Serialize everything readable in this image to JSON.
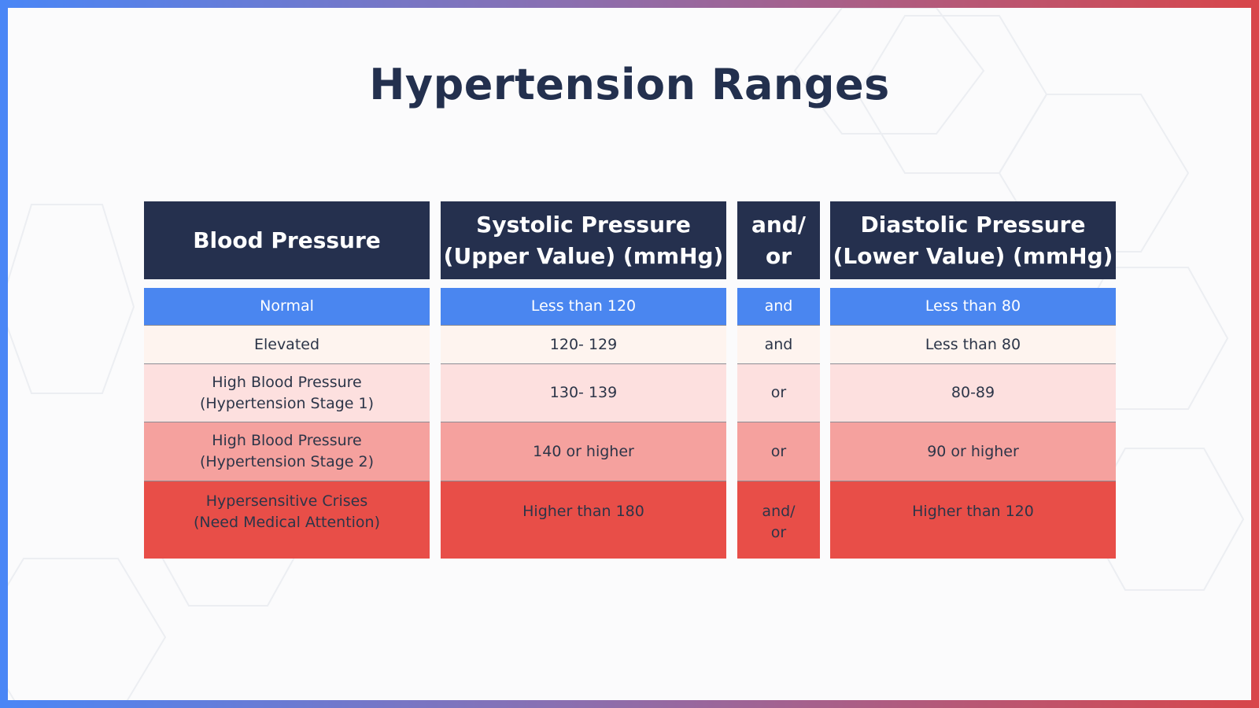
{
  "title": "Hypertension Ranges",
  "colors": {
    "header": "#25304e",
    "normal": "#4a86f0",
    "elevated": "#fef4ef",
    "stage1": "#fde0df",
    "stage2": "#f5a19e",
    "crisis": "#e84e48"
  },
  "table": {
    "headers": {
      "category": "Blood Pressure",
      "systolic_l1": "Systolic Pressure",
      "systolic_l2": "(Upper Value) (mmHg)",
      "andor_l1": "and/",
      "andor_l2": "or",
      "diastolic_l1": "Diastolic Pressure",
      "diastolic_l2": "(Lower Value) (mmHg)"
    },
    "rows": [
      {
        "category_l1": "Normal",
        "category_l2": "",
        "systolic": "Less than 120",
        "andor_l1": "and",
        "andor_l2": "",
        "diastolic": "Less than 80"
      },
      {
        "category_l1": "Elevated",
        "category_l2": "",
        "systolic": "120- 129",
        "andor_l1": "and",
        "andor_l2": "",
        "diastolic": "Less than 80"
      },
      {
        "category_l1": "High Blood Pressure",
        "category_l2": "(Hypertension Stage 1)",
        "systolic": "130- 139",
        "andor_l1": "or",
        "andor_l2": "",
        "diastolic": "80-89"
      },
      {
        "category_l1": "High Blood Pressure",
        "category_l2": "(Hypertension Stage 2)",
        "systolic": "140 or higher",
        "andor_l1": "or",
        "andor_l2": "",
        "diastolic": "90 or higher"
      },
      {
        "category_l1": "Hypersensitive Crises",
        "category_l2": "(Need Medical Attention)",
        "systolic": "Higher than 180",
        "andor_l1": "and/",
        "andor_l2": "or",
        "diastolic": "Higher than 120"
      }
    ]
  }
}
